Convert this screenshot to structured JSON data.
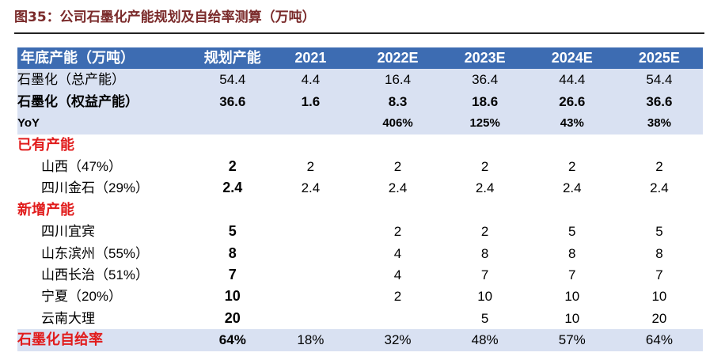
{
  "title": "图35：公司石墨化产能规划及自给率测算（万吨）",
  "table": {
    "headers": [
      "年底产能（万吨）",
      "规划产能",
      "2021",
      "2022E",
      "2023E",
      "2024E",
      "2025E"
    ],
    "rows": {
      "total": [
        "石墨化（总产能）",
        "54.4",
        "4.4",
        "16.4",
        "36.4",
        "44.4",
        "54.4"
      ],
      "equity": [
        "石墨化（权益产能）",
        "36.6",
        "1.6",
        "8.3",
        "18.6",
        "26.6",
        "36.6"
      ],
      "yoy": [
        "YoY",
        "",
        "",
        "406%",
        "125%",
        "43%",
        "38%"
      ],
      "existing_header": "已有产能",
      "existing": [
        [
          "山西（47%）",
          "2",
          "2",
          "2",
          "2",
          "2",
          "2"
        ],
        [
          "四川金石（29%）",
          "2.4",
          "2.4",
          "2.4",
          "2.4",
          "2.4",
          "2.4"
        ]
      ],
      "new_header": "新增产能",
      "new": [
        [
          "四川宜宾",
          "5",
          "",
          "2",
          "2",
          "5",
          "5"
        ],
        [
          "山东滨州（55%）",
          "8",
          "",
          "4",
          "8",
          "8",
          "8"
        ],
        [
          "山西长治（51%）",
          "7",
          "",
          "4",
          "7",
          "7",
          "7"
        ],
        [
          "宁夏（20%）",
          "10",
          "",
          "2",
          "10",
          "10",
          "10"
        ],
        [
          "云南大理",
          "20",
          "",
          "",
          "5",
          "10",
          "20"
        ]
      ],
      "ratio": [
        "石墨化自给率",
        "64%",
        "18%",
        "32%",
        "48%",
        "57%",
        "64%"
      ]
    }
  }
}
